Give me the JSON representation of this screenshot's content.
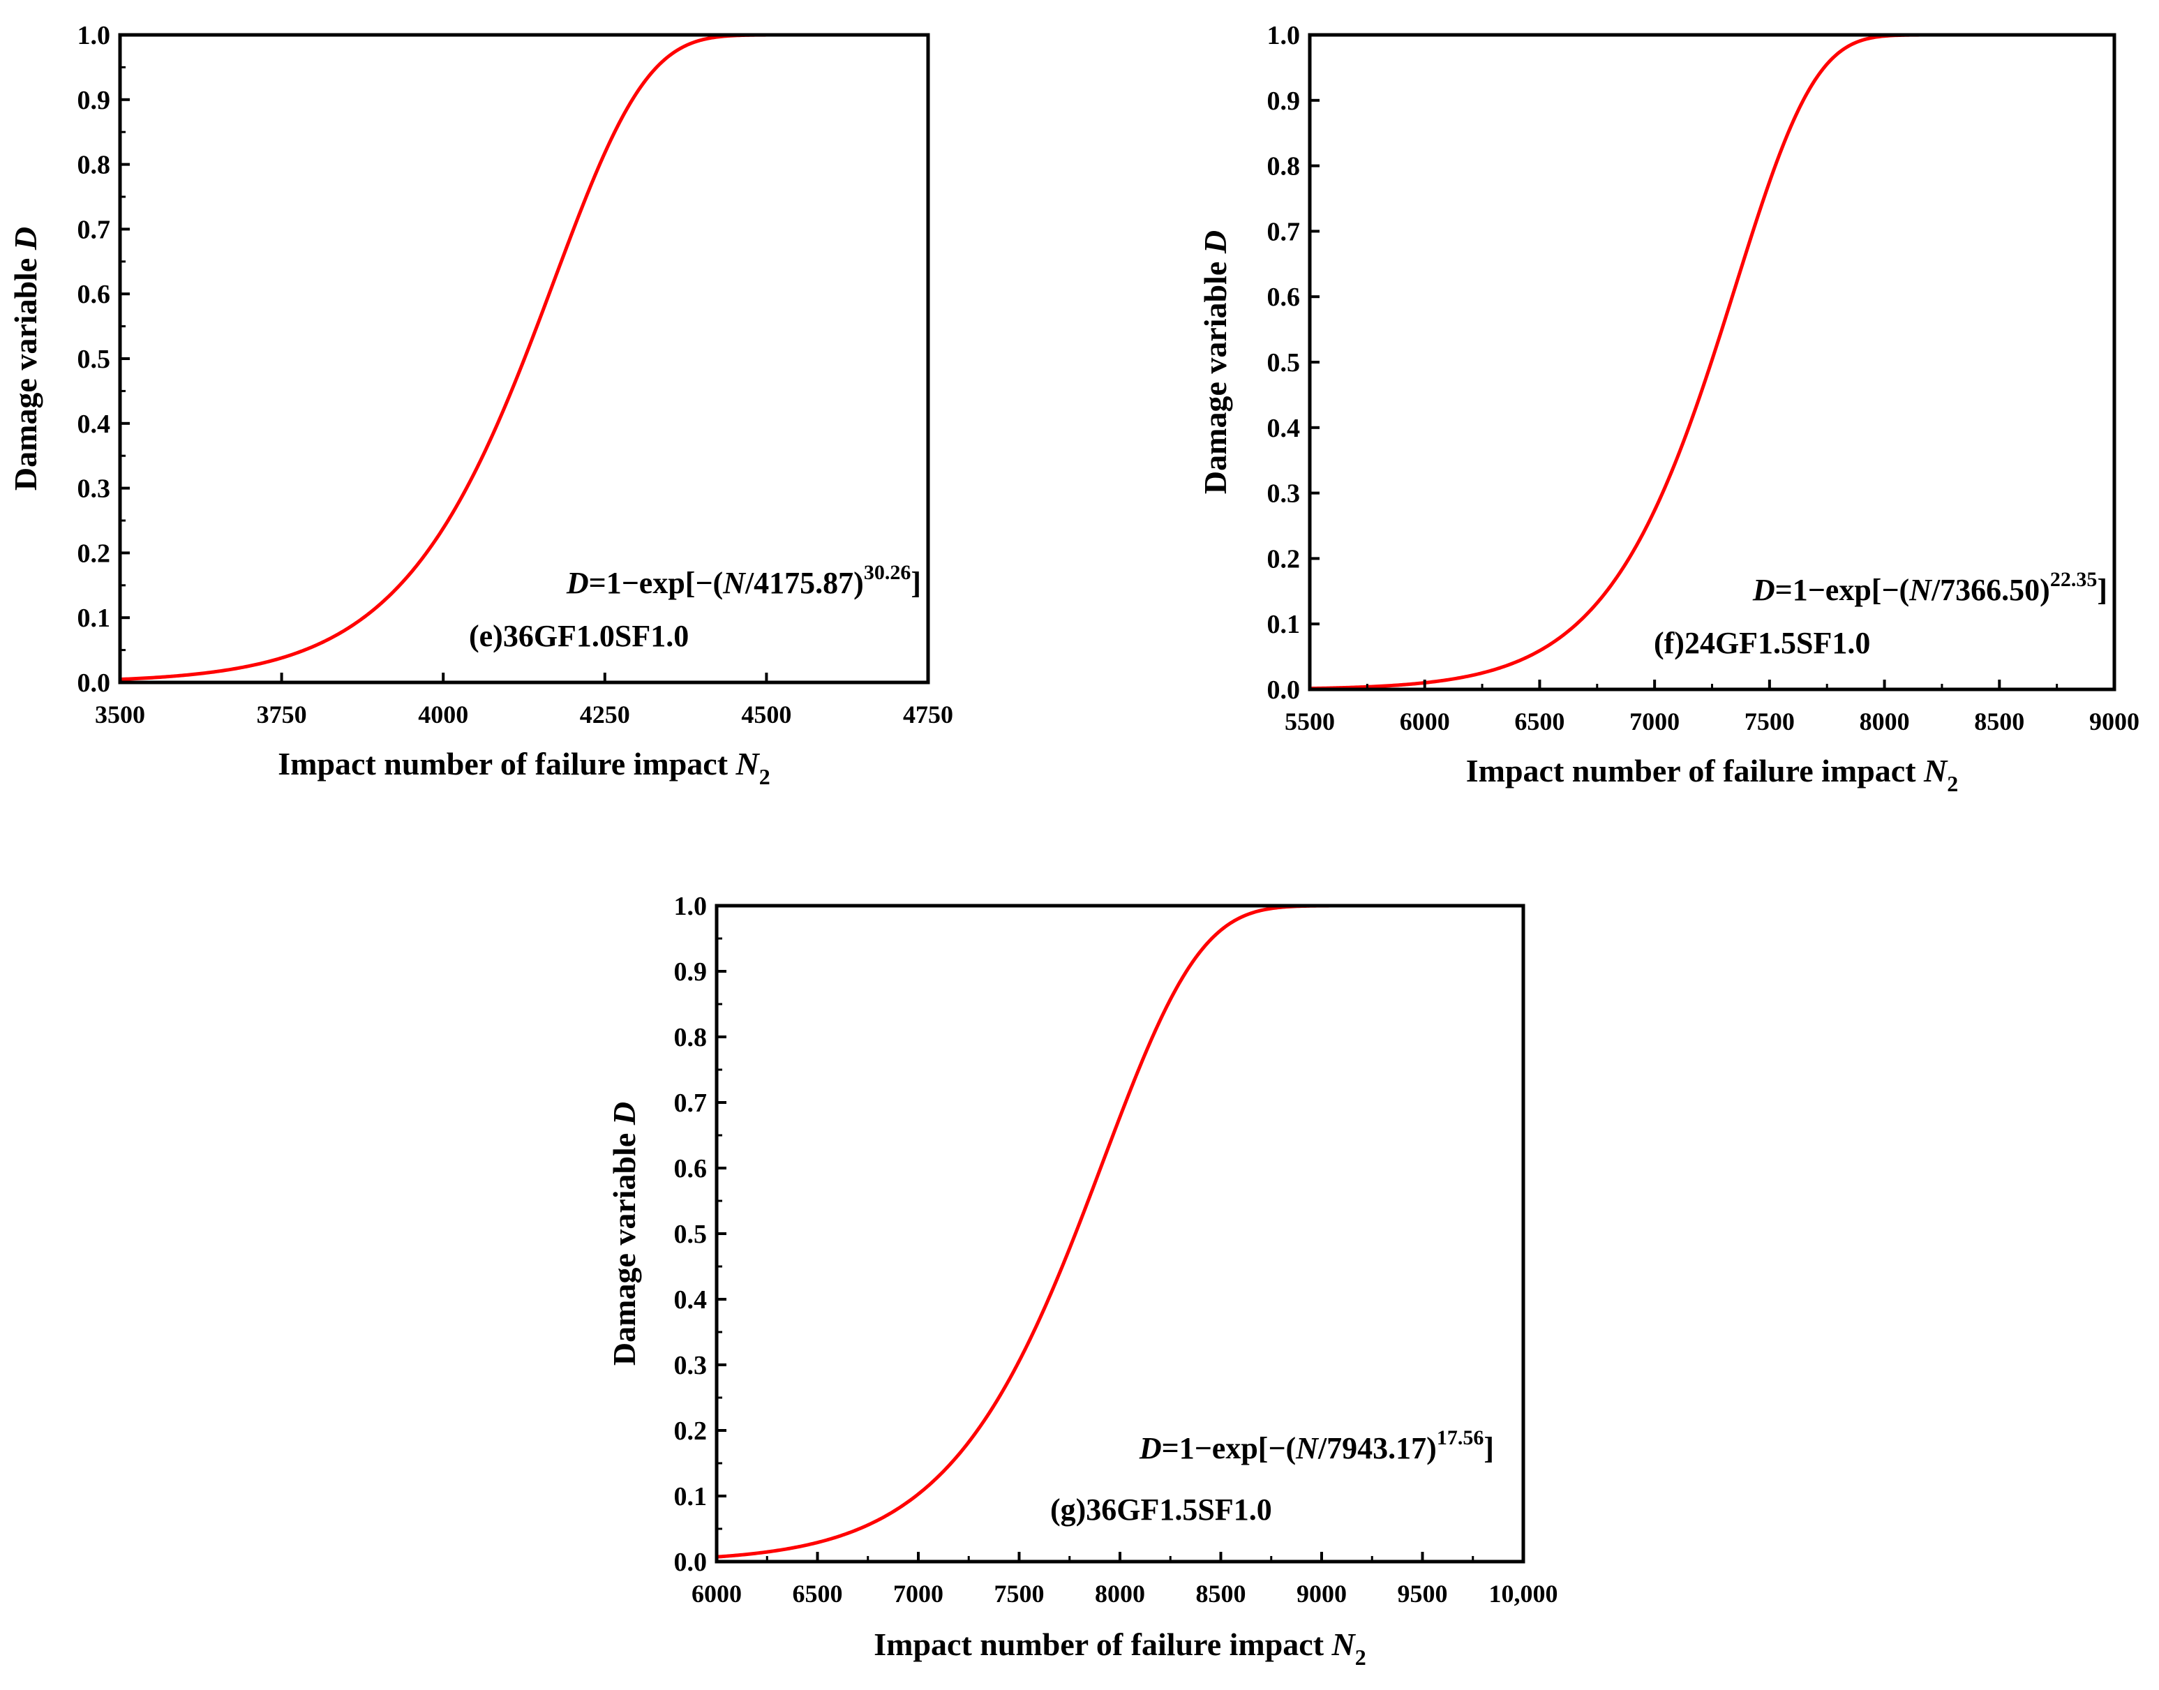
{
  "chart_data": [
    {
      "type": "line",
      "panel_label": "(e)36GF1.0SF1.0",
      "equation": {
        "prefix": "D",
        "body": "=1−exp[−(",
        "var": "N",
        "scale": "/4175.87)",
        "exponent": "30.26",
        "suffix": "]"
      },
      "xlabel": "Impact number of failure impact ",
      "xlabel_var": "N",
      "xlabel_sub": "2",
      "ylabel": "Damage variable ",
      "ylabel_var": "D",
      "xlim": [
        3500,
        4750
      ],
      "ylim": [
        0,
        1
      ],
      "xticks": [
        "3500",
        "3750",
        "4000",
        "4250",
        "4500",
        "4750"
      ],
      "yticks": [
        "0.0",
        "0.1",
        "0.2",
        "0.3",
        "0.4",
        "0.5",
        "0.6",
        "0.7",
        "0.8",
        "0.9",
        "1.0"
      ],
      "series": [
        {
          "color": "#ff0000",
          "eta": 4175.87,
          "beta": 30.26
        }
      ]
    },
    {
      "type": "line",
      "panel_label": "(f)24GF1.5SF1.0",
      "equation": {
        "prefix": "D",
        "body": "=1−exp[−(",
        "var": "N",
        "scale": "/7366.50)",
        "exponent": "22.35",
        "suffix": "]"
      },
      "xlabel": "Impact number of failure impact ",
      "xlabel_var": "N",
      "xlabel_sub": "2",
      "ylabel": "Damage variable ",
      "ylabel_var": "D",
      "xlim": [
        5500,
        9000
      ],
      "ylim": [
        0,
        1
      ],
      "xticks": [
        "5500",
        "6000",
        "6500",
        "7000",
        "7500",
        "8000",
        "8500",
        "9000"
      ],
      "yticks": [
        "0.0",
        "0.1",
        "0.2",
        "0.3",
        "0.4",
        "0.5",
        "0.6",
        "0.7",
        "0.8",
        "0.9",
        "1.0"
      ],
      "series": [
        {
          "color": "#ff0000",
          "eta": 7366.5,
          "beta": 22.35
        }
      ]
    },
    {
      "type": "line",
      "panel_label": "(g)36GF1.5SF1.0",
      "equation": {
        "prefix": "D",
        "body": "=1−exp[−(",
        "var": "N",
        "scale": "/7943.17)",
        "exponent": "17.56",
        "suffix": "]"
      },
      "xlabel": "Impact number of failure impact ",
      "xlabel_var": "N",
      "xlabel_sub": "2",
      "ylabel": "Damage variable ",
      "ylabel_var": "D",
      "xlim": [
        6000,
        10000
      ],
      "ylim": [
        0,
        1
      ],
      "xticks": [
        "6000",
        "6500",
        "7000",
        "7500",
        "8000",
        "8500",
        "9000",
        "9500",
        "10,000"
      ],
      "yticks": [
        "0.0",
        "0.1",
        "0.2",
        "0.3",
        "0.4",
        "0.5",
        "0.6",
        "0.7",
        "0.8",
        "0.9",
        "1.0"
      ],
      "series": [
        {
          "color": "#ff0000",
          "eta": 7943.17,
          "beta": 17.56
        }
      ]
    }
  ]
}
